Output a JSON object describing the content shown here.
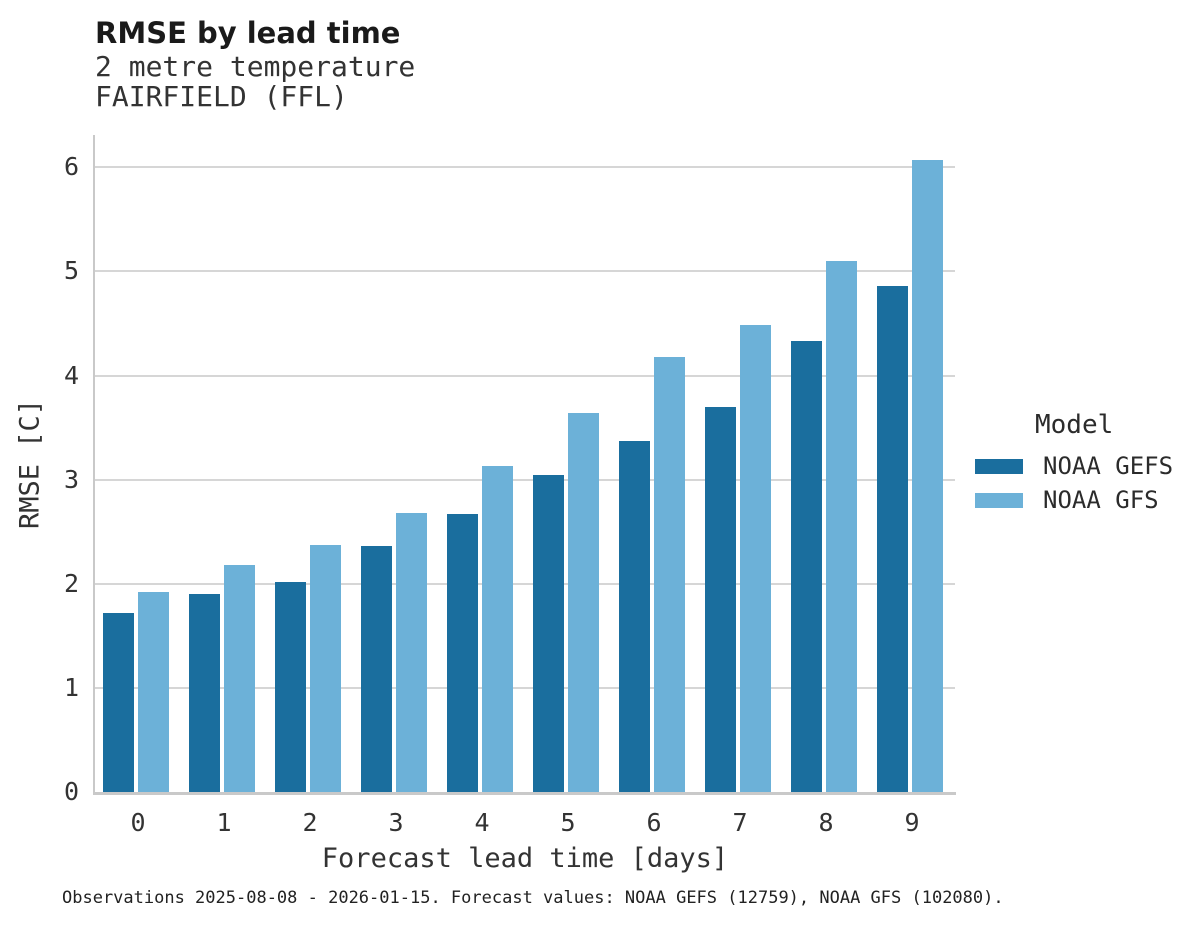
{
  "header": {
    "title": "RMSE by lead time",
    "subtitle_line1": "2 metre temperature",
    "subtitle_line2": "FAIRFIELD (FFL)"
  },
  "legend": {
    "title": "Model",
    "items": [
      {
        "label": "NOAA GEFS",
        "color": "#1a6e9e"
      },
      {
        "label": "NOAA GFS",
        "color": "#6cb1d8"
      }
    ]
  },
  "footer": {
    "caption": "Observations 2025-08-08 - 2026-01-15. Forecast values: NOAA GEFS (12759), NOAA GFS (102080)."
  },
  "chart_data": {
    "type": "bar",
    "title": "RMSE by lead time",
    "subtitle": [
      "2 metre temperature",
      "FAIRFIELD (FFL)"
    ],
    "xlabel": "Forecast lead time [days]",
    "ylabel": "RMSE [C]",
    "categories": [
      "0",
      "1",
      "2",
      "3",
      "4",
      "5",
      "6",
      "7",
      "8",
      "9"
    ],
    "series": [
      {
        "name": "NOAA GEFS",
        "color": "#1a6e9e",
        "values": [
          1.72,
          1.9,
          2.02,
          2.36,
          2.67,
          3.04,
          3.37,
          3.7,
          4.33,
          4.86
        ]
      },
      {
        "name": "NOAA GFS",
        "color": "#6cb1d8",
        "values": [
          1.92,
          2.18,
          2.37,
          2.68,
          3.13,
          3.64,
          4.18,
          4.49,
          5.1,
          6.07
        ]
      }
    ],
    "yticks": [
      0,
      1,
      2,
      3,
      4,
      5,
      6
    ],
    "ylim": [
      0,
      6.31
    ],
    "grid": "horizontal",
    "legend_title": "Model",
    "legend_position": "right",
    "caption": "Observations 2025-08-08 - 2026-01-15. Forecast values: NOAA GEFS (12759), NOAA GFS (102080)."
  }
}
